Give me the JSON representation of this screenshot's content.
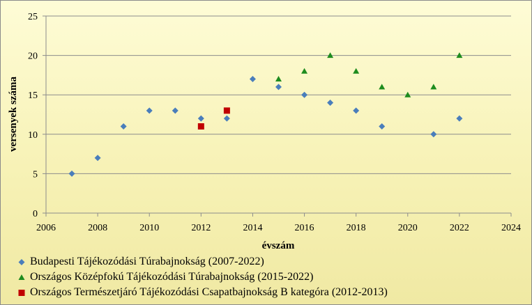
{
  "chart_data": {
    "type": "scatter",
    "xlabel": "évszám",
    "ylabel": "versenyek száma",
    "xlim": [
      2006,
      2024
    ],
    "ylim": [
      0,
      25
    ],
    "xticks": [
      "2006",
      "2008",
      "2010",
      "2012",
      "2014",
      "2016",
      "2018",
      "2020",
      "2022",
      "2024"
    ],
    "yticks": [
      "0",
      "5",
      "10",
      "15",
      "20",
      "25"
    ],
    "grid": "horizontal",
    "legend_position": "bottom-left",
    "series": [
      {
        "name": "Budapesti Tájékozódási Túrabajnokság (2007-2022)",
        "marker": "diamond",
        "color": "#4a7ebb",
        "points": [
          [
            2007,
            5
          ],
          [
            2008,
            7
          ],
          [
            2009,
            11
          ],
          [
            2010,
            13
          ],
          [
            2011,
            13
          ],
          [
            2012,
            12
          ],
          [
            2013,
            12
          ],
          [
            2014,
            17
          ],
          [
            2015,
            16
          ],
          [
            2016,
            15
          ],
          [
            2017,
            14
          ],
          [
            2018,
            13
          ],
          [
            2019,
            11
          ],
          [
            2021,
            10
          ],
          [
            2022,
            12
          ]
        ]
      },
      {
        "name": "Országos Középfokú Tájékozódási Túrabajnokság (2015-2022)",
        "marker": "triangle",
        "color": "#1e8c1e",
        "points": [
          [
            2015,
            17
          ],
          [
            2016,
            18
          ],
          [
            2017,
            20
          ],
          [
            2018,
            18
          ],
          [
            2019,
            16
          ],
          [
            2020,
            15
          ],
          [
            2021,
            16
          ],
          [
            2022,
            20
          ]
        ]
      },
      {
        "name": "Országos Természetjáró Tájékozódási Csapatbajnokság B kategóra (2012-2013)",
        "marker": "square",
        "color": "#c00000",
        "points": [
          [
            2012,
            11
          ],
          [
            2013,
            13
          ]
        ]
      }
    ]
  }
}
